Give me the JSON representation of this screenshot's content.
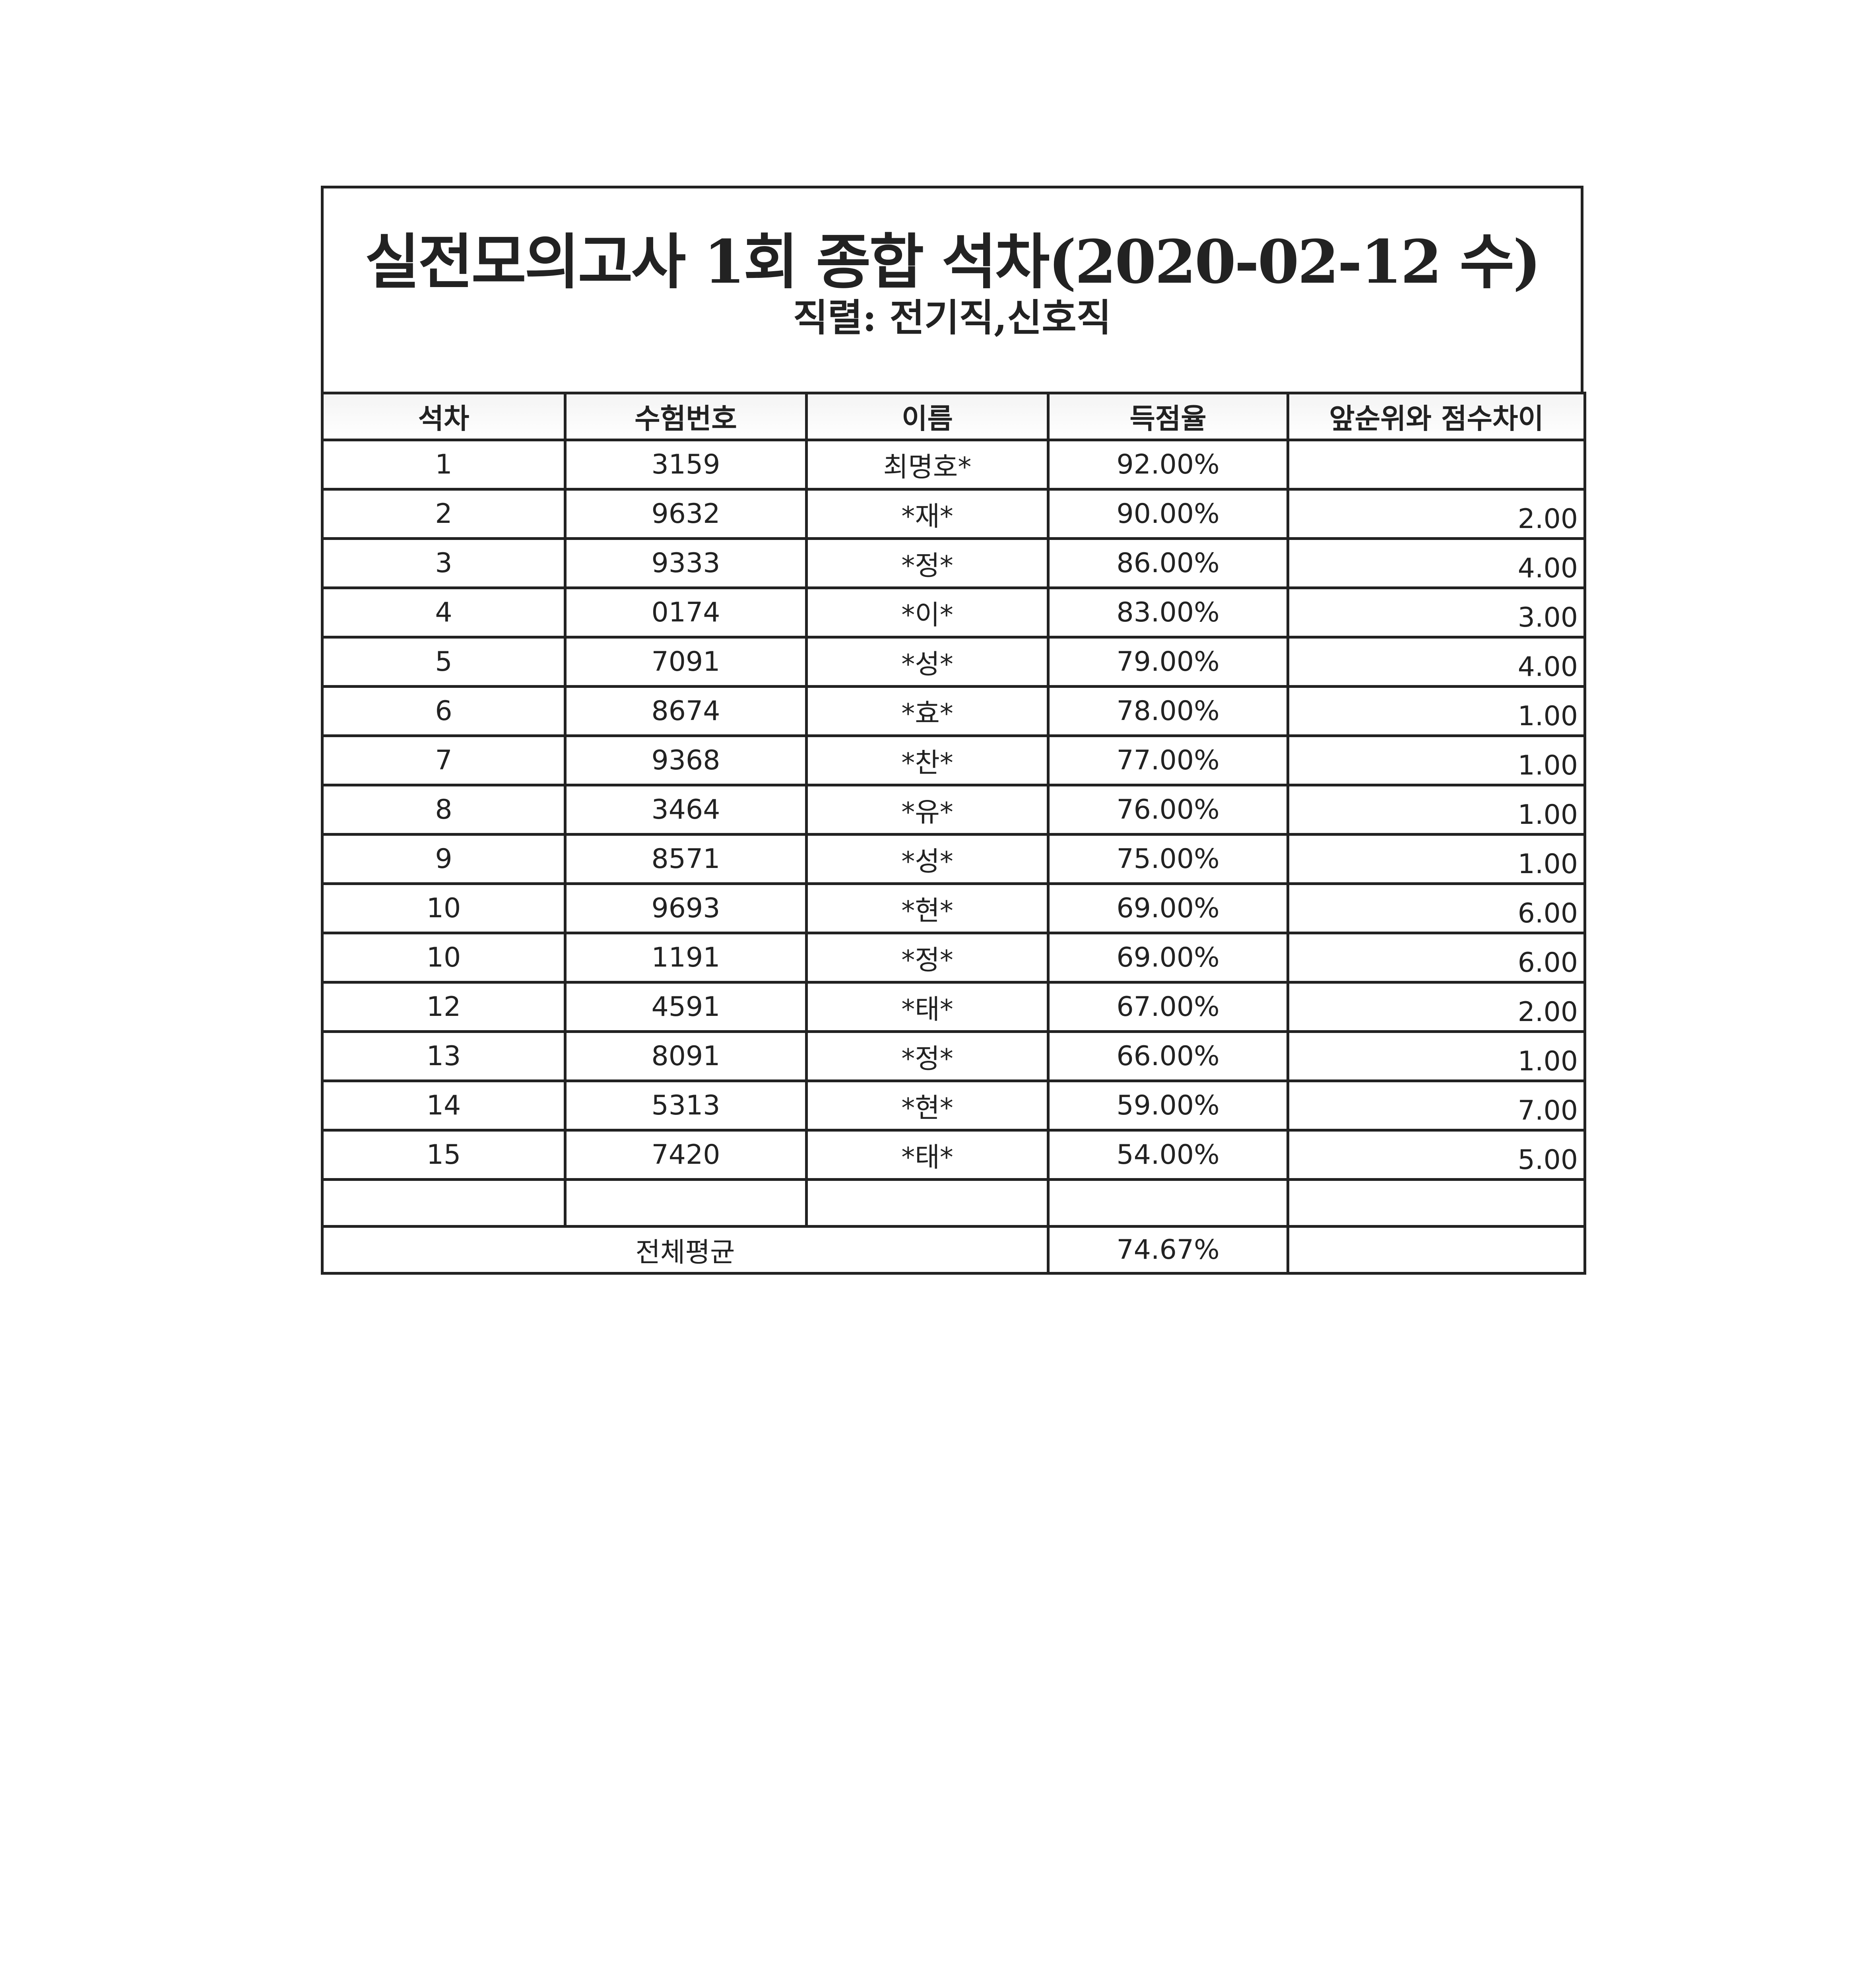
{
  "title": "실전모의고사 1회 종합 석차(2020-02-12 수)",
  "subtitle": "직렬: 전기직,신호직",
  "columns": [
    "석차",
    "수험번호",
    "이름",
    "득점율",
    "앞순위와 점수차이"
  ],
  "rows": [
    {
      "rank": "1",
      "id": "3159",
      "name": "최명호*",
      "score": "92.00%",
      "gap": ""
    },
    {
      "rank": "2",
      "id": "9632",
      "name": "*재*",
      "score": "90.00%",
      "gap": "2.00"
    },
    {
      "rank": "3",
      "id": "9333",
      "name": "*정*",
      "score": "86.00%",
      "gap": "4.00"
    },
    {
      "rank": "4",
      "id": "0174",
      "name": "*이*",
      "score": "83.00%",
      "gap": "3.00"
    },
    {
      "rank": "5",
      "id": "7091",
      "name": "*성*",
      "score": "79.00%",
      "gap": "4.00"
    },
    {
      "rank": "6",
      "id": "8674",
      "name": "*효*",
      "score": "78.00%",
      "gap": "1.00"
    },
    {
      "rank": "7",
      "id": "9368",
      "name": "*찬*",
      "score": "77.00%",
      "gap": "1.00"
    },
    {
      "rank": "8",
      "id": "3464",
      "name": "*유*",
      "score": "76.00%",
      "gap": "1.00"
    },
    {
      "rank": "9",
      "id": "8571",
      "name": "*성*",
      "score": "75.00%",
      "gap": "1.00"
    },
    {
      "rank": "10",
      "id": "9693",
      "name": "*현*",
      "score": "69.00%",
      "gap": "6.00"
    },
    {
      "rank": "10",
      "id": "1191",
      "name": "*정*",
      "score": "69.00%",
      "gap": "6.00"
    },
    {
      "rank": "12",
      "id": "4591",
      "name": "*태*",
      "score": "67.00%",
      "gap": "2.00"
    },
    {
      "rank": "13",
      "id": "8091",
      "name": "*정*",
      "score": "66.00%",
      "gap": "1.00"
    },
    {
      "rank": "14",
      "id": "5313",
      "name": "*현*",
      "score": "59.00%",
      "gap": "7.00"
    },
    {
      "rank": "15",
      "id": "7420",
      "name": "*태*",
      "score": "54.00%",
      "gap": "5.00"
    }
  ],
  "average": {
    "label": "전체평균",
    "value": "74.67%"
  }
}
